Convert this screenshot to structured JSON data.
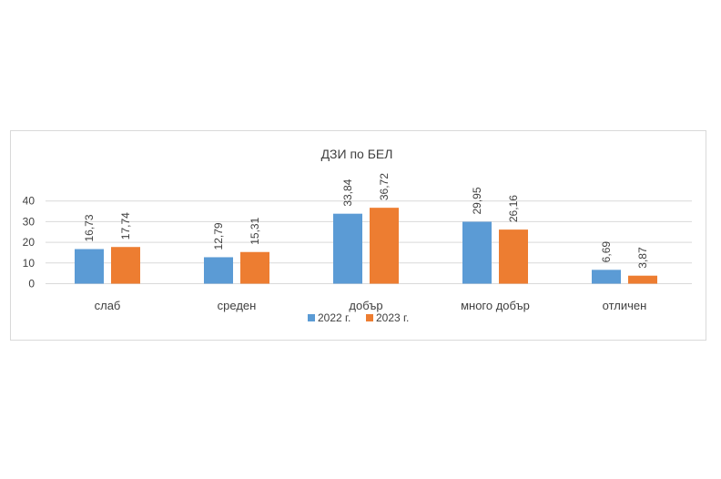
{
  "chart_data": {
    "type": "bar",
    "title": "ДЗИ по БЕЛ",
    "categories": [
      "слаб",
      "среден",
      "добър",
      "много добър",
      "отличен"
    ],
    "series": [
      {
        "name": "2022 г.",
        "color": "#5b9bd5",
        "values": [
          16.73,
          12.79,
          33.84,
          29.95,
          6.69
        ],
        "labels": [
          "16,73",
          "12,79",
          "33,84",
          "29,95",
          "6,69"
        ]
      },
      {
        "name": "2023 г.",
        "color": "#ed7d31",
        "values": [
          17.74,
          15.31,
          36.72,
          26.16,
          3.87
        ],
        "labels": [
          "17,74",
          "15,31",
          "36,72",
          "26,16",
          "3,87"
        ]
      }
    ],
    "y_ticks": [
      "0",
      "10",
      "20",
      "30",
      "40"
    ],
    "ylim": [
      0,
      40
    ],
    "grid": true,
    "legend": "bottom"
  }
}
